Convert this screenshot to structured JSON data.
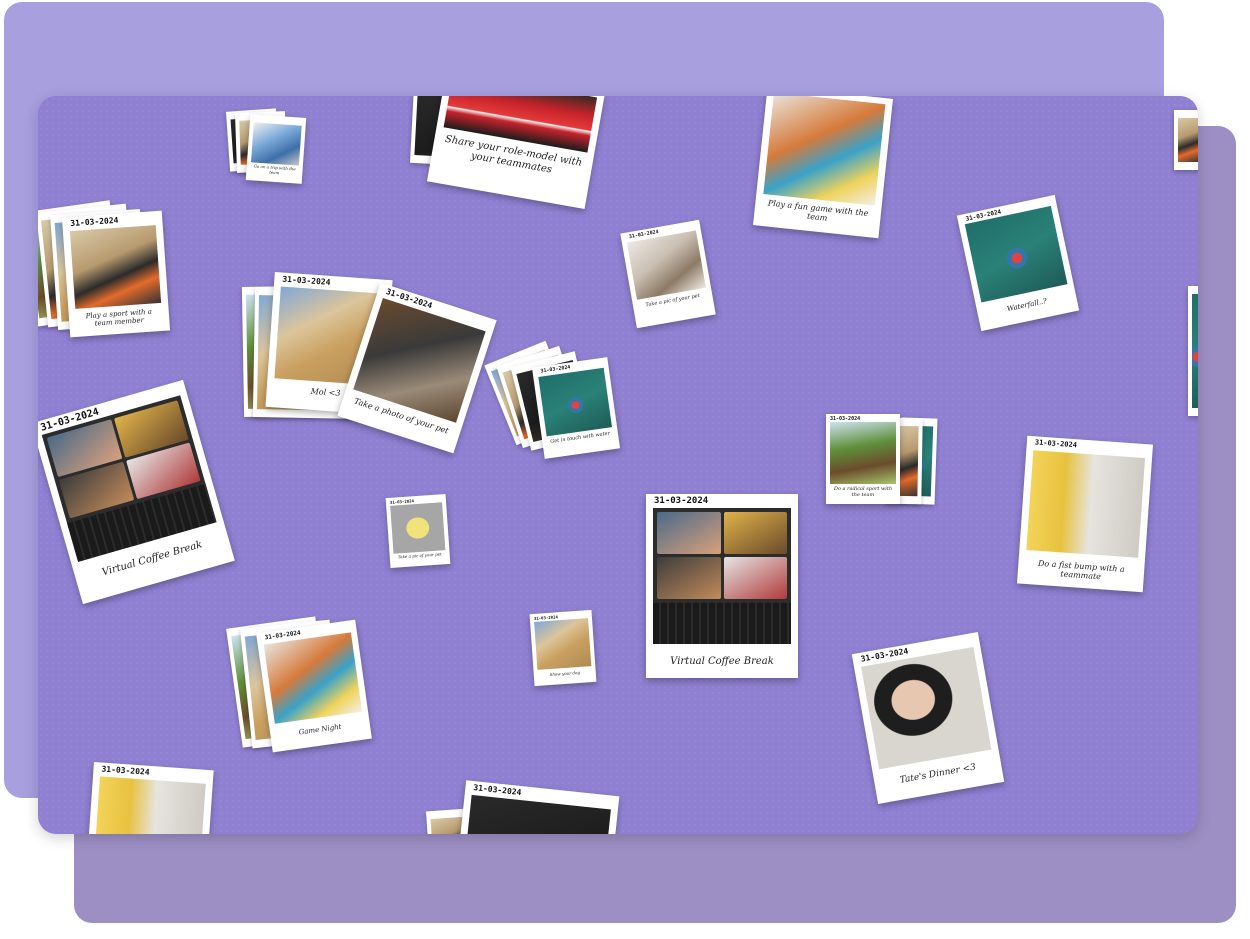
{
  "board": {
    "cards": {
      "play_sport": {
        "date": "31-03-2024",
        "caption": "Play a sport with a team member"
      },
      "mol": {
        "date": "31-03-2024",
        "caption": "Mol <3"
      },
      "photo_pet": {
        "date": "31-03-2024",
        "caption": "Take a photo of your pet"
      },
      "coffee_left": {
        "date": "31-03-2024",
        "caption": "Virtual Coffee Break"
      },
      "coffee_center": {
        "date": "31-03-2024",
        "caption": "Virtual Coffee Break"
      },
      "role_model": {
        "caption": "Share your role-model with your teammates"
      },
      "fun_game": {
        "caption": "Play a fun game with the team"
      },
      "cat_pic": {
        "date": "31-03-2024",
        "caption": "Take a pic of your pet"
      },
      "waterfall": {
        "date": "31-03-2024",
        "caption": "Waterfall..?"
      },
      "get_in_touch": {
        "date": "31-03-2024",
        "caption": "Get in touch with water"
      },
      "trip_team": {
        "caption": "Go on a trip with the team"
      },
      "radical_sport": {
        "date": "31-03-2024",
        "caption": "Do a radical sport with the team"
      },
      "fist_bump": {
        "date": "31-03-2024",
        "caption": "Do a fist bump with a teammate"
      },
      "bird": {
        "date": "31-03-2024",
        "caption": "Take a pic of your pet"
      },
      "show_dog": {
        "date": "31-03-2024",
        "caption": "Show your dog"
      },
      "game_night": {
        "date": "31-03-2024",
        "caption": "Game Night"
      },
      "tates_dinner": {
        "date": "31-03-2024",
        "caption": "Tate's Dinner <3"
      },
      "bottom_left": {
        "date": "31-03-2024"
      },
      "bottom_center": {
        "date": "31-03-2024"
      }
    }
  }
}
